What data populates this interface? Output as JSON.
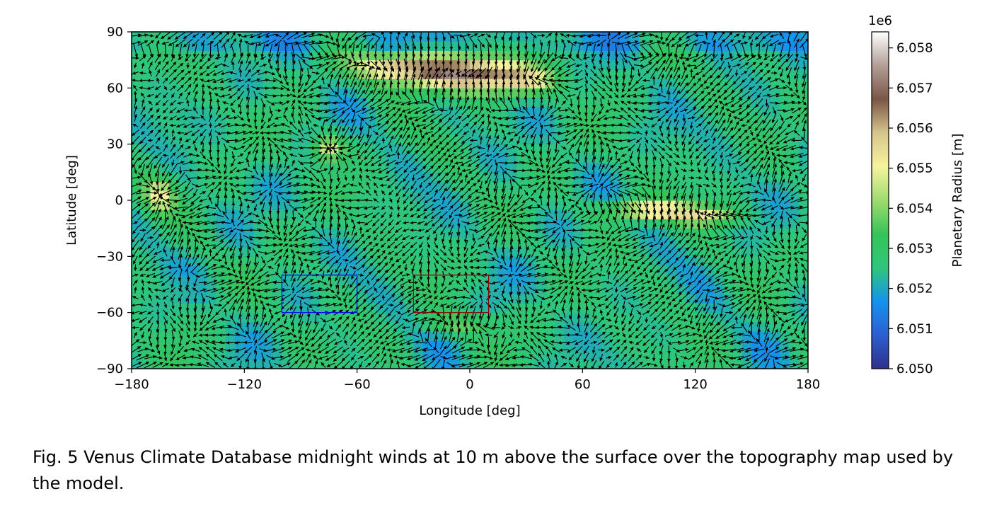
{
  "chart_data": {
    "type": "heatmap",
    "title": "",
    "xlabel": "Longitude [deg]",
    "ylabel": "Latitude [deg]",
    "xlim": [
      -180,
      180
    ],
    "ylim": [
      -90,
      90
    ],
    "xticks": [
      -180,
      -120,
      -60,
      0,
      60,
      120,
      180
    ],
    "yticks": [
      -90,
      -60,
      -30,
      0,
      30,
      60,
      90
    ],
    "xtick_labels": [
      "−180",
      "−120",
      "−60",
      "0",
      "60",
      "120",
      "180"
    ],
    "ytick_labels": [
      "−90",
      "−60",
      "−30",
      "0",
      "30",
      "60",
      "90"
    ],
    "grid": false,
    "overlay": "wind vectors (quiver)",
    "colorbar": {
      "label": "Planetary Radius [m]",
      "offset_label": "1e6",
      "range": [
        6.05,
        6.0584
      ],
      "ticks": [
        6.05,
        6.051,
        6.052,
        6.053,
        6.054,
        6.055,
        6.056,
        6.057,
        6.058
      ],
      "tick_labels": [
        "6.050",
        "6.051",
        "6.052",
        "6.053",
        "6.054",
        "6.055",
        "6.056",
        "6.057",
        "6.058"
      ],
      "colormap": "gist_earth-like",
      "colors": [
        "#2f2f8f",
        "#2c5fd0",
        "#1593ee",
        "#2fc67b",
        "#35c458",
        "#9fdb70",
        "#f6f49e",
        "#d6c58e",
        "#7a5646",
        "#b39e97",
        "#ffffff"
      ]
    },
    "topography_features": [
      {
        "lon": -5,
        "lat": 68,
        "level": 0.85,
        "spread_lon": 30,
        "spread_lat": 9
      },
      {
        "lon": -40,
        "lat": 72,
        "level": 0.65,
        "spread_lon": 20,
        "spread_lat": 7
      },
      {
        "lon": 30,
        "lat": 64,
        "level": 0.55,
        "spread_lon": 18,
        "spread_lat": 7
      },
      {
        "lon": -75,
        "lat": 28,
        "level": 0.6,
        "spread_lon": 8,
        "spread_lat": 7
      },
      {
        "lon": -165,
        "lat": 3,
        "level": 0.55,
        "spread_lon": 8,
        "spread_lat": 9
      },
      {
        "lon": 95,
        "lat": -5,
        "level": 0.65,
        "spread_lon": 22,
        "spread_lat": 5
      },
      {
        "lon": 125,
        "lat": -8,
        "level": 0.55,
        "spread_lon": 18,
        "spread_lat": 5
      },
      {
        "lon": -5,
        "lat": -66,
        "level": 0.45,
        "spread_lon": 18,
        "spread_lat": 5
      },
      {
        "lon": -150,
        "lat": -45,
        "level": 0.35,
        "spread_lon": 8,
        "spread_lat": 5
      }
    ],
    "highlight_boxes": [
      {
        "color": "#0000ff",
        "lon": [
          -100,
          -60
        ],
        "lat": [
          -60,
          -40
        ]
      },
      {
        "color": "#8b0000",
        "lon": [
          -30,
          10
        ],
        "lat": [
          -60,
          -40
        ]
      }
    ]
  },
  "caption": "Fig. 5 Venus Climate Database midnight winds at 10 m above the surface over the topography map used by the model."
}
